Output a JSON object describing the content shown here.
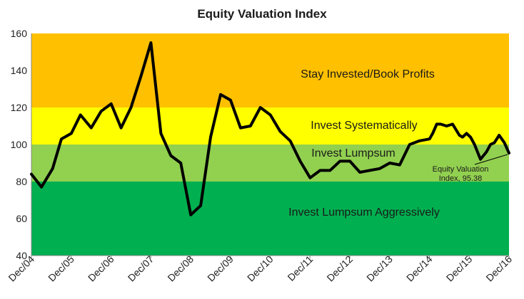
{
  "chart_data": {
    "type": "line",
    "title": "Equity Valuation Index",
    "ylim": [
      40,
      160
    ],
    "yticks": [
      40,
      60,
      80,
      100,
      120,
      140,
      160
    ],
    "xticks": [
      "Dec/04",
      "Dec/05",
      "Dec/06",
      "Dec/07",
      "Dec/08",
      "Dec/09",
      "Dec/10",
      "Dec/11",
      "Dec/12",
      "Dec/13",
      "Dec/14",
      "Dec/15",
      "Dec/16"
    ],
    "xlim": [
      2004.917,
      2016.917
    ],
    "grid": false,
    "bands": [
      {
        "label": "Invest Lumpsum Aggressively",
        "from": 40,
        "to": 80,
        "color": "#00b050"
      },
      {
        "label": "Invest Lumpsum",
        "from": 80,
        "to": 100,
        "color": "#92d050"
      },
      {
        "label": "Invest Systematically",
        "from": 100,
        "to": 120,
        "color": "#ffff00"
      },
      {
        "label": "Stay Invested/Book Profits",
        "from": 120,
        "to": 160,
        "color": "#ffc000"
      }
    ],
    "series": [
      {
        "line_color": "#000000",
        "x": [
          2004.917,
          2005.17,
          2005.45,
          2005.67,
          2005.92,
          2006.15,
          2006.42,
          2006.67,
          2006.92,
          2007.17,
          2007.42,
          2007.67,
          2007.92,
          2008.17,
          2008.42,
          2008.67,
          2008.92,
          2009.17,
          2009.42,
          2009.67,
          2009.92,
          2010.17,
          2010.42,
          2010.67,
          2010.92,
          2011.17,
          2011.42,
          2011.67,
          2011.92,
          2012.17,
          2012.42,
          2012.67,
          2012.92,
          2013.17,
          2013.42,
          2013.67,
          2013.92,
          2014.17,
          2014.42,
          2014.67,
          2014.92,
          2015.0,
          2015.1,
          2015.2,
          2015.35,
          2015.5,
          2015.67,
          2015.75,
          2015.85,
          2015.95,
          2016.05,
          2016.2,
          2016.35,
          2016.45,
          2016.55,
          2016.67,
          2016.8,
          2016.917
        ],
        "y": [
          84,
          77,
          87,
          103,
          106,
          116,
          109,
          118,
          122,
          109,
          120,
          137,
          155,
          106,
          94,
          90,
          62,
          67,
          104,
          127,
          124,
          109,
          110,
          120,
          116,
          107,
          102,
          91,
          82,
          86,
          86,
          91,
          91,
          85,
          86,
          87,
          90,
          89,
          100,
          102,
          103,
          106,
          111,
          111,
          110,
          111,
          105,
          104,
          106,
          104,
          100,
          92,
          96,
          100,
          101,
          105,
          101,
          95.38
        ]
      }
    ],
    "annotation": {
      "text_line1": "Equity Valuation",
      "text_line2": "Index, 95.38",
      "x": 2016.917,
      "y": 95.38
    }
  }
}
